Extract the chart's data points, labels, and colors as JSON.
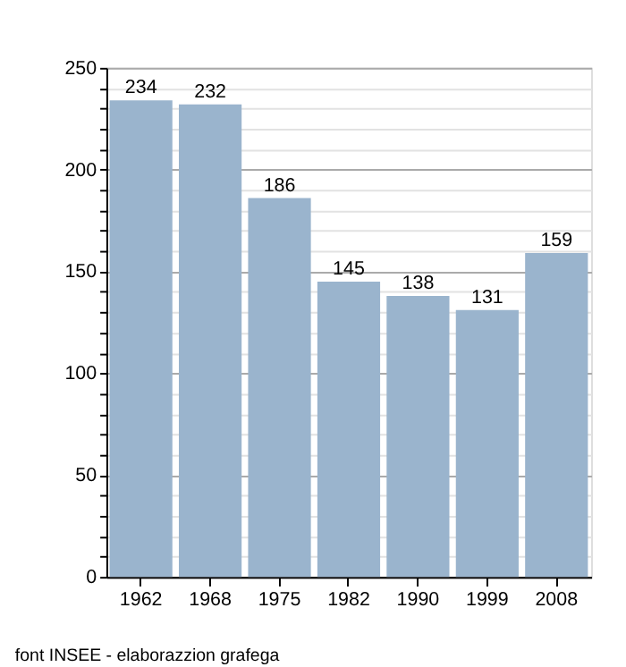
{
  "chart_data": {
    "type": "bar",
    "categories": [
      "1962",
      "1968",
      "1975",
      "1982",
      "1990",
      "1999",
      "2008"
    ],
    "values": [
      234,
      232,
      186,
      145,
      138,
      131,
      159
    ],
    "color": "#9ab4cd",
    "data_labels": true,
    "ylim": [
      0,
      250
    ],
    "yticks": [
      0,
      {
        "value": 10,
        "label": null
      },
      {
        "value": 20,
        "label": null
      },
      {
        "value": 30,
        "label": null
      },
      {
        "value": 40,
        "label": null
      },
      50,
      {
        "value": 60,
        "label": null
      },
      {
        "value": 70,
        "label": null
      },
      {
        "value": 80,
        "label": null
      },
      {
        "value": 90,
        "label": null
      },
      100,
      {
        "value": 110,
        "label": null
      },
      {
        "value": 120,
        "label": null
      },
      {
        "value": 130,
        "label": null
      },
      {
        "value": 140,
        "label": null
      },
      150,
      {
        "value": 160,
        "label": null
      },
      {
        "value": 170,
        "label": null
      },
      {
        "value": 180,
        "label": null
      },
      {
        "value": 190,
        "label": null
      },
      200,
      {
        "value": 210,
        "label": null
      },
      {
        "value": 220,
        "label": null
      },
      {
        "value": 230,
        "label": null
      },
      {
        "value": 240,
        "label": null
      },
      250
    ],
    "grid": true,
    "annotations": [
      "font INSEE - elaborazzion grafega"
    ]
  }
}
